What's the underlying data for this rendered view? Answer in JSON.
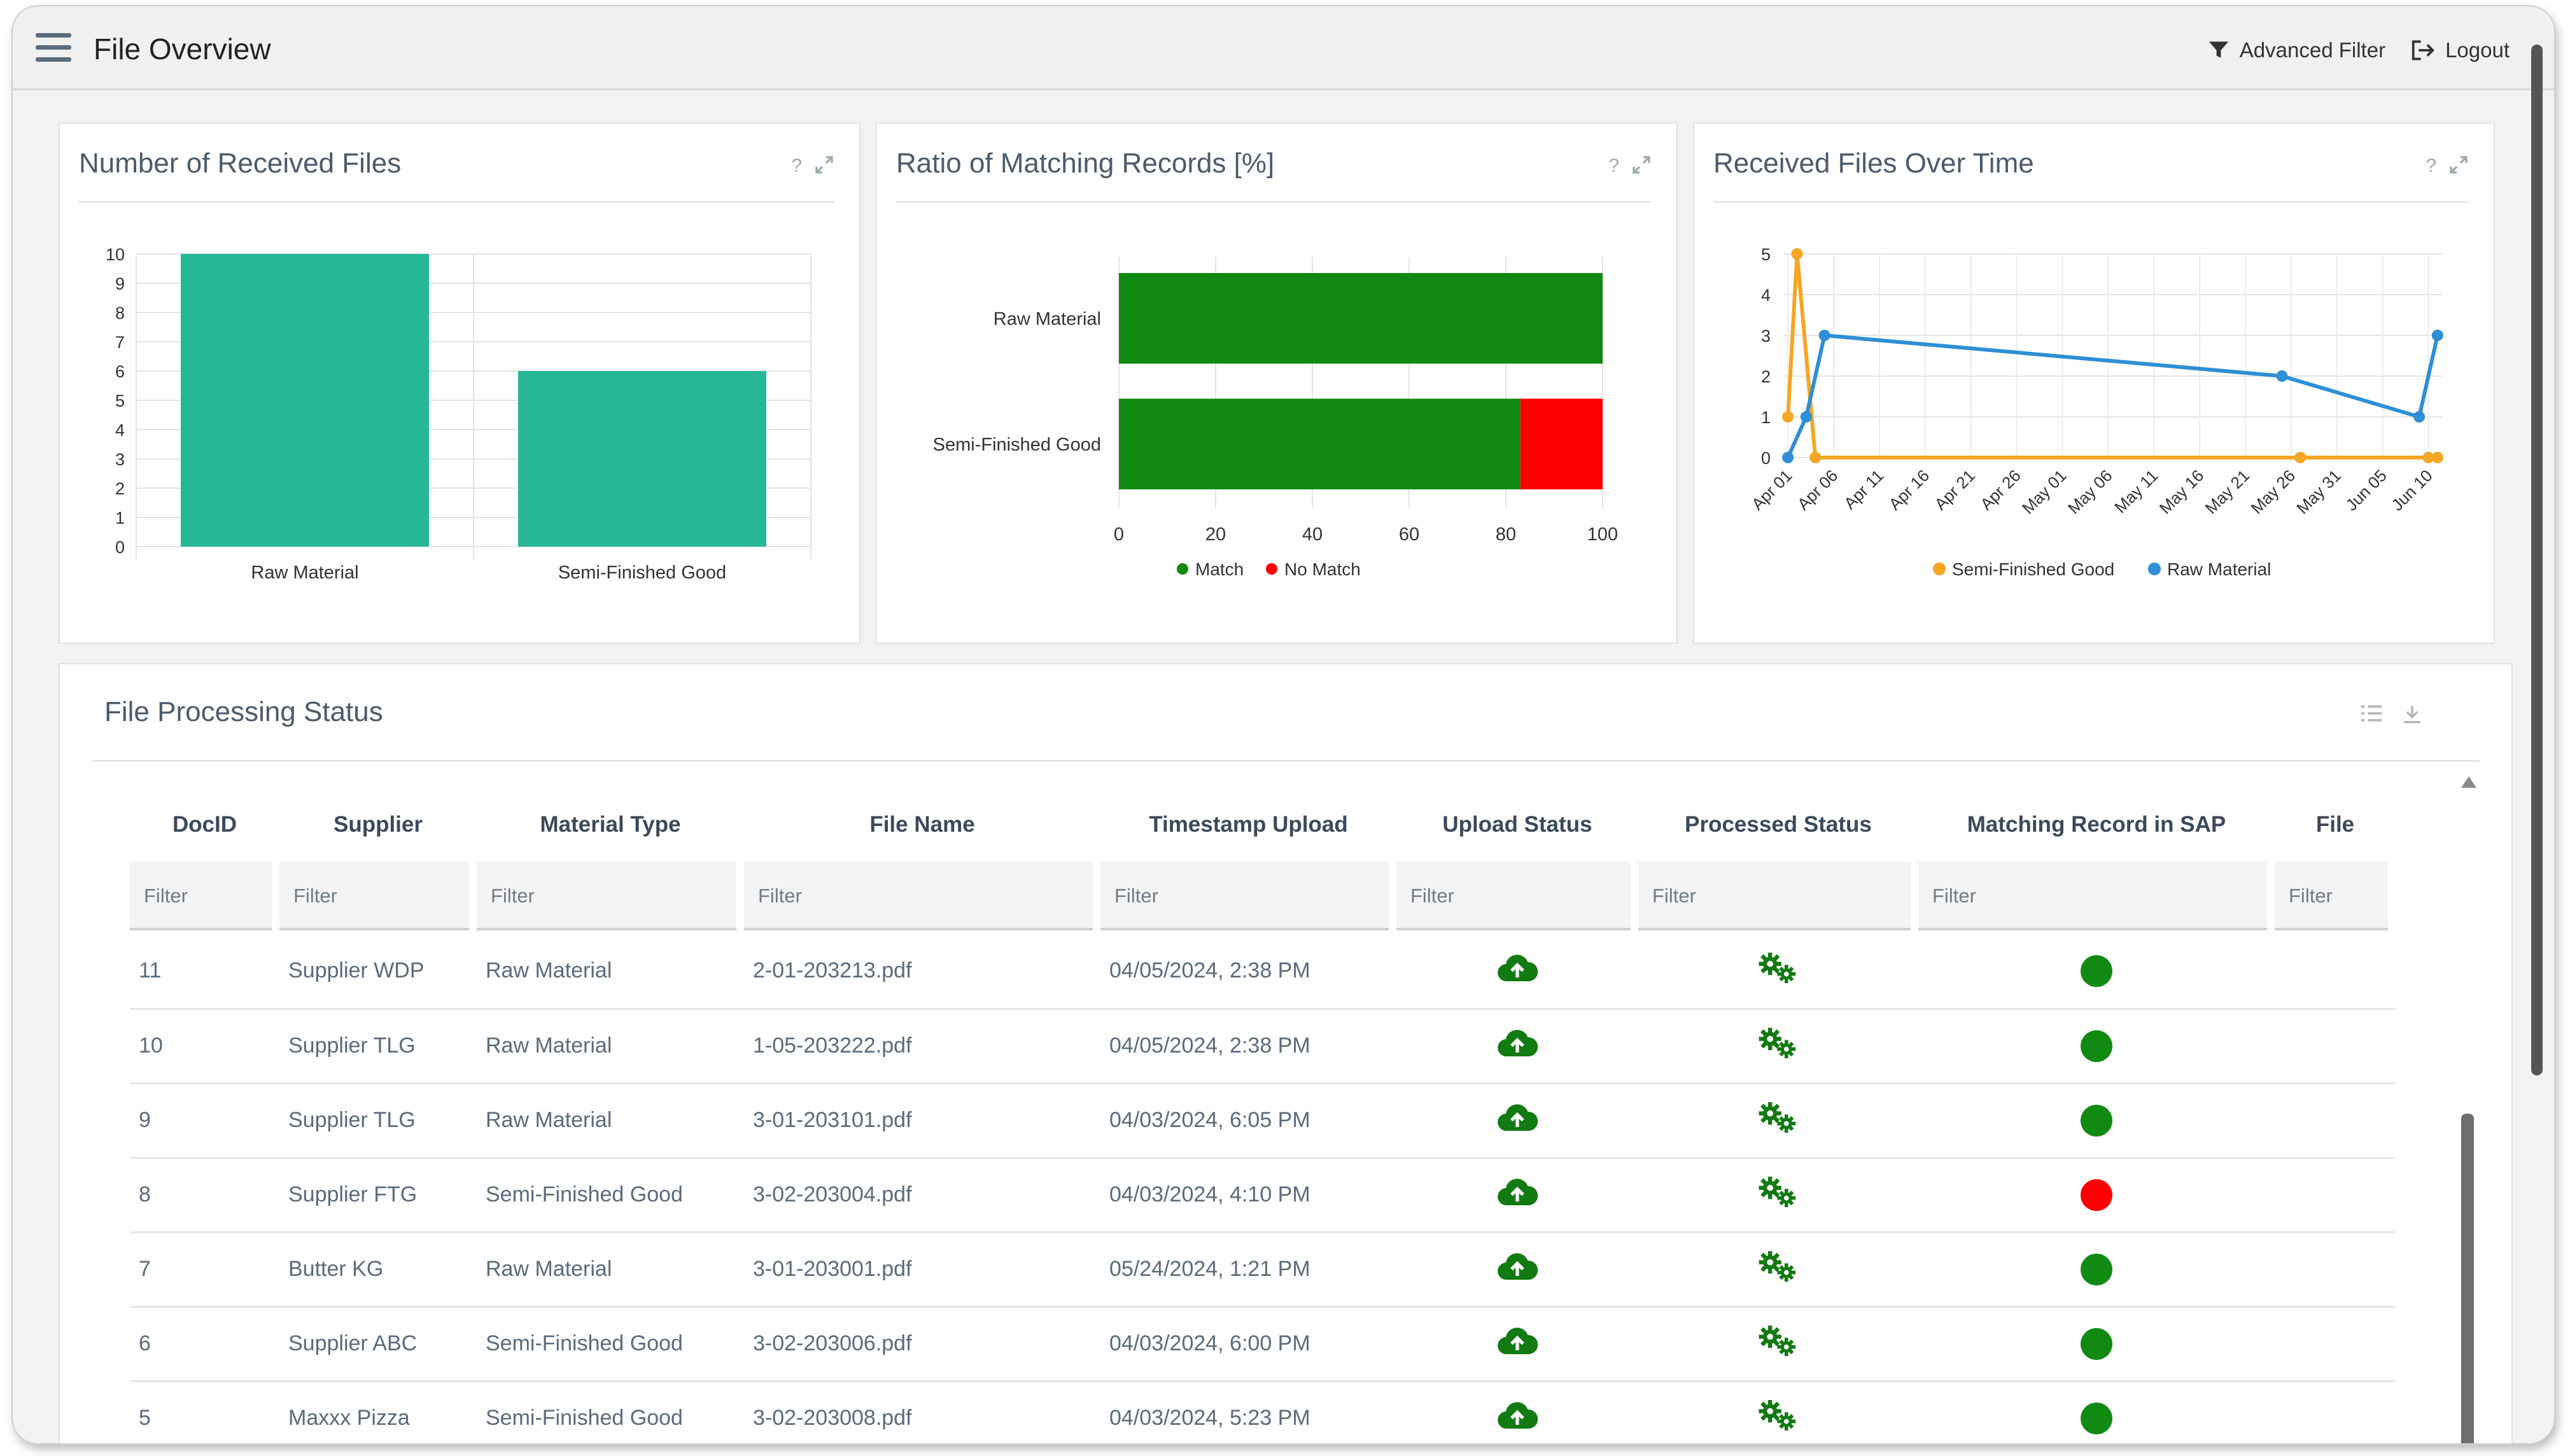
{
  "header": {
    "title": "File Overview",
    "advanced_filter": "Advanced Filter",
    "logout": "Logout"
  },
  "cards": {
    "received": {
      "title": "Number of Received Files",
      "help": "?"
    },
    "ratio": {
      "title": "Ratio of Matching Records [%]",
      "help": "?"
    },
    "overtime": {
      "title": "Received Files Over Time",
      "help": "?"
    }
  },
  "chart_data": [
    {
      "type": "bar",
      "title": "Number of Received Files",
      "categories": [
        "Raw Material",
        "Semi-Finished Good"
      ],
      "values": [
        10,
        6
      ],
      "ylim": [
        0,
        10
      ],
      "yticks": [
        "0",
        "1",
        "2",
        "3",
        "4",
        "5",
        "6",
        "7",
        "8",
        "9",
        "10"
      ],
      "color": "#26b896"
    },
    {
      "type": "bar",
      "orientation": "horizontal",
      "stacked": true,
      "title": "Ratio of Matching Records [%]",
      "categories": [
        "Raw Material",
        "Semi-Finished Good"
      ],
      "series": [
        {
          "name": "Match",
          "values": [
            100,
            83
          ],
          "color": "#118a11"
        },
        {
          "name": "No Match",
          "values": [
            0,
            17
          ],
          "color": "#ff0000"
        }
      ],
      "xlim": [
        0,
        100
      ],
      "xticks": [
        "0",
        "20",
        "40",
        "60",
        "80",
        "100"
      ]
    },
    {
      "type": "line",
      "title": "Received Files Over Time",
      "x": [
        "Apr 01",
        "Apr 06",
        "Apr 11",
        "Apr 16",
        "Apr 21",
        "Apr 26",
        "May 01",
        "May 06",
        "May 11",
        "May 16",
        "May 21",
        "May 26",
        "May 31",
        "Jun 05",
        "Jun 10"
      ],
      "ylim": [
        0,
        5
      ],
      "yticks": [
        "0",
        "1",
        "2",
        "3",
        "4",
        "5"
      ],
      "series": [
        {
          "name": "Semi-Finished Good",
          "color": "#f5a623",
          "points": [
            [
              0,
              1
            ],
            [
              1,
              5
            ],
            [
              3,
              0
            ],
            [
              56,
              0
            ],
            [
              70,
              0
            ],
            [
              71,
              0
            ]
          ]
        },
        {
          "name": "Raw Material",
          "color": "#2d8fd5",
          "points": [
            [
              0,
              0
            ],
            [
              2,
              1
            ],
            [
              4,
              3
            ],
            [
              54,
              2
            ],
            [
              69,
              1
            ],
            [
              71,
              3
            ]
          ]
        }
      ],
      "x_domain_days": [
        -0.5,
        71.5
      ]
    }
  ],
  "table": {
    "title": "File Processing Status",
    "columns": [
      "DocID",
      "Supplier",
      "Material Type",
      "File Name",
      "Timestamp Upload",
      "Upload Status",
      "Processed Status",
      "Matching Record in SAP",
      "File"
    ],
    "filter_placeholder": "Filter",
    "rows": [
      {
        "id": "11",
        "supplier": "Supplier WDP",
        "type": "Raw Material",
        "file": "2-01-203213.pdf",
        "ts": "04/05/2024, 2:38 PM",
        "match": "green"
      },
      {
        "id": "10",
        "supplier": "Supplier TLG",
        "type": "Raw Material",
        "file": "1-05-203222.pdf",
        "ts": "04/05/2024, 2:38 PM",
        "match": "green"
      },
      {
        "id": "9",
        "supplier": "Supplier TLG",
        "type": "Raw Material",
        "file": "3-01-203101.pdf",
        "ts": "04/03/2024, 6:05 PM",
        "match": "green"
      },
      {
        "id": "8",
        "supplier": "Supplier FTG",
        "type": "Semi-Finished Good",
        "file": "3-02-203004.pdf",
        "ts": "04/03/2024, 4:10 PM",
        "match": "red"
      },
      {
        "id": "7",
        "supplier": "Butter KG",
        "type": "Raw Material",
        "file": "3-01-203001.pdf",
        "ts": "05/24/2024, 1:21 PM",
        "match": "green"
      },
      {
        "id": "6",
        "supplier": "Supplier ABC",
        "type": "Semi-Finished Good",
        "file": "3-02-203006.pdf",
        "ts": "04/03/2024, 6:00 PM",
        "match": "green"
      },
      {
        "id": "5",
        "supplier": "Maxxx Pizza",
        "type": "Semi-Finished Good",
        "file": "3-02-203008.pdf",
        "ts": "04/03/2024, 5:23 PM",
        "match": "green"
      }
    ]
  },
  "colors": {
    "match_green": "#118a11",
    "no_match_red": "#ff0000",
    "upload_green": "#117a11"
  }
}
